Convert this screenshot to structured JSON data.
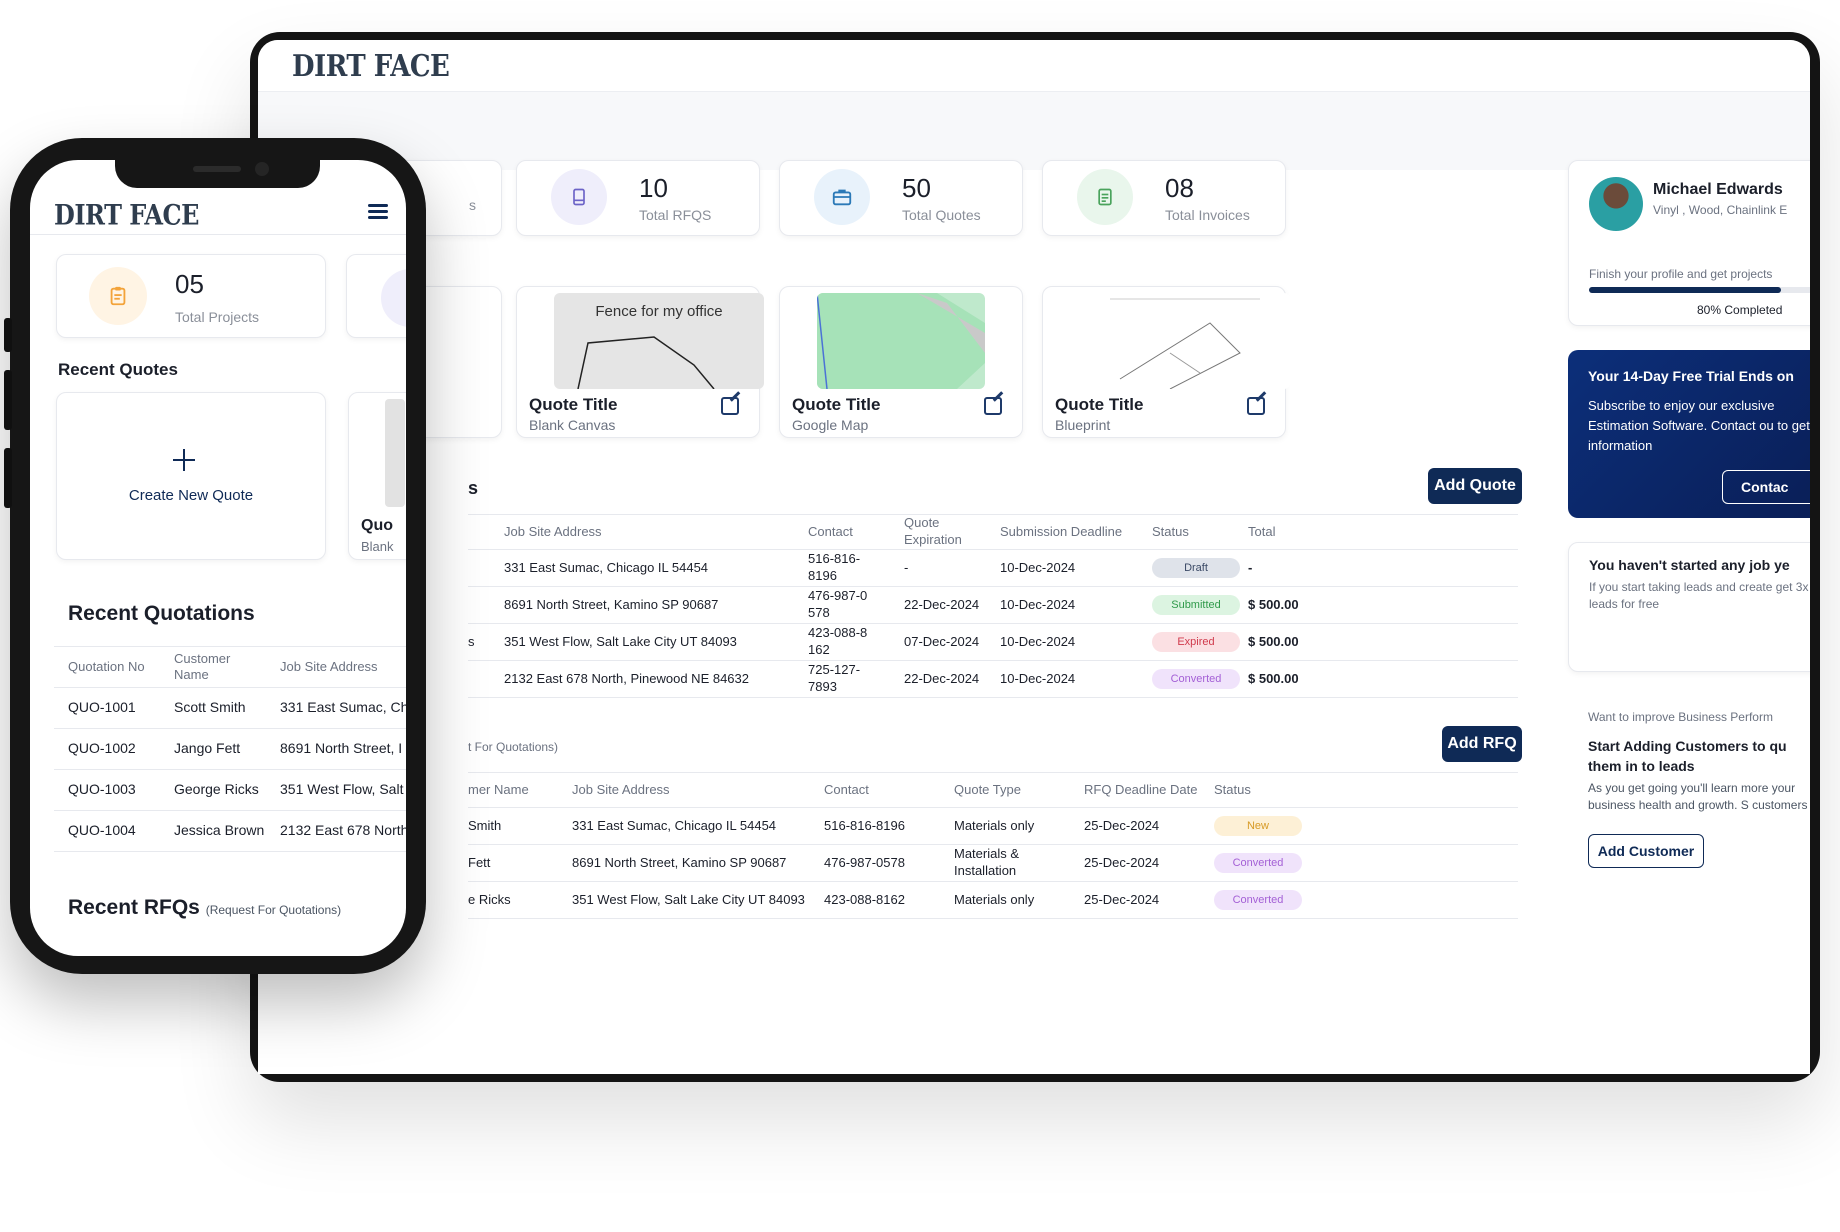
{
  "brand": {
    "logo": "DIRT FACE"
  },
  "desktop": {
    "stats": [
      {
        "value": "10",
        "label": "Total RFQS",
        "icon": "book-icon",
        "bg": "#efeefb",
        "color": "#6c63c7"
      },
      {
        "value": "50",
        "label": "Total Quotes",
        "icon": "briefcase-icon",
        "bg": "#e8f2fb",
        "color": "#2b79b7"
      },
      {
        "value": "08",
        "label": "Total Invoices",
        "icon": "invoice-icon",
        "bg": "#e9f6ec",
        "color": "#4aa35c"
      }
    ],
    "partial_stat_label": "s",
    "quote_cards": [
      {
        "title": "Quote Title",
        "subtitle": "Blank Canvas",
        "image_caption": "Fence for my office",
        "image": "sketch"
      },
      {
        "title": "Quote Title",
        "subtitle": "Google Map",
        "image": "map"
      },
      {
        "title": "Quote Title",
        "subtitle": "Blueprint",
        "image": "blueprint"
      }
    ],
    "quotations": {
      "title_fragment": "s",
      "add_button": "Add Quote",
      "columns": [
        "Job Site Address",
        "Contact",
        "Quote Expiration",
        "Submission Deadline",
        "Status",
        "Total"
      ],
      "rows": [
        {
          "address": "331 East Sumac, Chicago IL 54454",
          "contact": "516-816-8196",
          "expiration": "-",
          "deadline": "10-Dec-2024",
          "status": "Draft",
          "total": "-"
        },
        {
          "address": "8691 North Street, Kamino SP 90687",
          "contact": "476-987-0 578",
          "expiration": "22-Dec-2024",
          "deadline": "10-Dec-2024",
          "status": "Submitted",
          "total": "$ 500.00"
        },
        {
          "address": "351 West Flow, Salt Lake City UT 84093",
          "contact": "423-088-8 162",
          "expiration": "07-Dec-2024",
          "deadline": "10-Dec-2024",
          "status": "Expired",
          "total": "$ 500.00"
        },
        {
          "address": "2132 East 678 North, Pinewood NE 84632",
          "contact": "725-127-7893",
          "expiration": "22-Dec-2024",
          "deadline": "10-Dec-2024",
          "status": "Converted",
          "total": "$ 500.00"
        }
      ],
      "row_fragments": [
        "",
        "",
        "s",
        ""
      ]
    },
    "rfqs": {
      "subtitle_fragment": "t For Quotations)",
      "add_button": "Add RFQ",
      "columns": [
        "mer Name",
        "Job Site Address",
        "Contact",
        "Quote Type",
        "RFQ Deadline Date",
        "Status"
      ],
      "rows": [
        {
          "customer": "Smith",
          "address": "331 East Sumac, Chicago IL 54454",
          "contact": "516-816-8196",
          "type": "Materials only",
          "deadline": "25-Dec-2024",
          "status": "New"
        },
        {
          "customer": "Fett",
          "address": "8691 North Street, Kamino SP 90687",
          "contact": "476-987-0578",
          "type": "Materials & Installation",
          "deadline": "25-Dec-2024",
          "status": "Converted"
        },
        {
          "customer": "e Ricks",
          "address": "351 West Flow, Salt Lake City UT 84093",
          "contact": "423-088-8162",
          "type": "Materials only",
          "deadline": "25-Dec-2024",
          "status": "Converted"
        }
      ]
    },
    "profile": {
      "name": "Michael Edwards",
      "services": "Vinyl , Wood, Chainlink E",
      "prompt": "Finish your profile and get projects",
      "progress": 80,
      "progress_label": "80% Completed"
    },
    "trial": {
      "title": "Your 14-Day Free Trial Ends on",
      "body": "Subscribe to enjoy our exclusive Estimation Software. Contact ou to get information",
      "button": "Contac"
    },
    "leads": {
      "title": "You haven't started any job ye",
      "body": "If you start taking leads and create get 3x leads for free"
    },
    "customers": {
      "intro": "Want to improve Business Perform",
      "title": "Start Adding Customers to qu them in to leads",
      "body": "As you get going you'll learn more your business health and growth. S customers",
      "button": "Add Customer"
    },
    "status_colors": {
      "Draft": {
        "bg": "#dfe3ea",
        "fg": "#3b4a66"
      },
      "Submitted": {
        "bg": "#dcf4e1",
        "fg": "#2f9a4a"
      },
      "Expired": {
        "bg": "#fbe0e3",
        "fg": "#d03a4c"
      },
      "Converted": {
        "bg": "#f0e3fb",
        "fg": "#a460d6"
      },
      "New": {
        "bg": "#fdf0d6",
        "fg": "#d79a26"
      }
    }
  },
  "phone": {
    "stat": {
      "value": "05",
      "label": "Total Projects"
    },
    "recent_quotes_title": "Recent Quotes",
    "create_new_label": "Create New Quote",
    "partial_card": {
      "title": "Quo",
      "subtitle": "Blank"
    },
    "recent_quotations_title": "Recent Quotations",
    "columns": [
      "Quotation No",
      "Customer Name",
      "Job Site Address"
    ],
    "rows": [
      {
        "no": "QUO-1001",
        "customer": "Scott Smith",
        "address": "331 East Sumac, Ch"
      },
      {
        "no": "QUO-1002",
        "customer": "Jango Fett",
        "address": "8691 North Street, I"
      },
      {
        "no": "QUO-1003",
        "customer": "George Ricks",
        "address": "351 West Flow, Salt"
      },
      {
        "no": "QUO-1004",
        "customer": "Jessica Brown",
        "address": "2132 East 678 North"
      }
    ],
    "recent_rfqs_title": "Recent RFQs",
    "recent_rfqs_sub": "(Request For Quotations)"
  }
}
